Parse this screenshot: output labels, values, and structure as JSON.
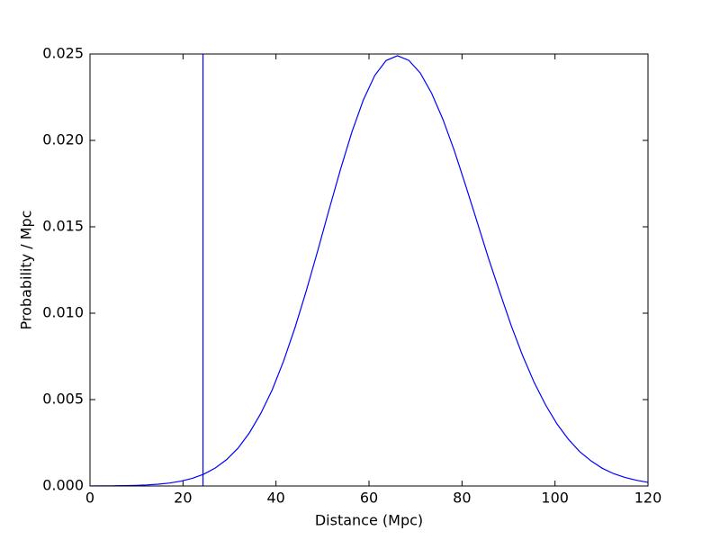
{
  "chart_data": {
    "type": "line",
    "xlabel": "Distance (Mpc)",
    "ylabel": "Probability / Mpc",
    "x": [
      0,
      2.45,
      4.9,
      7.35,
      9.8,
      12.24,
      14.69,
      17.14,
      19.59,
      22.04,
      24.49,
      26.94,
      29.39,
      31.84,
      34.29,
      36.73,
      39.18,
      41.63,
      44.08,
      46.53,
      48.98,
      51.43,
      53.88,
      56.33,
      58.78,
      61.22,
      63.67,
      66.12,
      68.57,
      71.02,
      73.47,
      75.92,
      78.37,
      80.82,
      83.27,
      85.71,
      88.16,
      90.61,
      93.06,
      95.51,
      97.96,
      100.41,
      102.86,
      105.31,
      107.76,
      110.2,
      112.65,
      115.1,
      117.55,
      120.0
    ],
    "series": [
      {
        "color": "#0000ff",
        "values": [
          2.9e-06,
          5.5e-06,
          1.05e-05,
          1.94e-05,
          3.49e-05,
          6.1e-05,
          0.000104,
          0.000173,
          0.000282,
          0.000447,
          0.000688,
          0.00104,
          0.00153,
          0.00219,
          0.00308,
          0.0042,
          0.00556,
          0.00723,
          0.00916,
          0.01131,
          0.01362,
          0.01601,
          0.01833,
          0.02049,
          0.02234,
          0.02375,
          0.02462,
          0.0249,
          0.02463,
          0.0239,
          0.02273,
          0.0212,
          0.01939,
          0.01736,
          0.01527,
          0.01317,
          0.01119,
          0.00926,
          0.00753,
          0.006,
          0.0047,
          0.0036,
          0.00271,
          0.00199,
          0.00145,
          0.00102,
          0.00071,
          0.00049,
          0.00033,
          0.00021
        ]
      }
    ],
    "vertical_line_x": 24.3,
    "vertical_line_color": "#0000ff",
    "xlim": [
      0,
      120
    ],
    "xticks": [
      0,
      20,
      40,
      60,
      80,
      100,
      120
    ],
    "ylim": [
      0,
      0.025
    ],
    "yticks": [
      {
        "value": 0,
        "label": "0.000"
      },
      {
        "value": 0.005,
        "label": "0.005"
      },
      {
        "value": 0.01,
        "label": "0.010"
      },
      {
        "value": 0.015,
        "label": "0.015"
      },
      {
        "value": 0.02,
        "label": "0.020"
      },
      {
        "value": 0.025,
        "label": "0.025"
      }
    ]
  }
}
